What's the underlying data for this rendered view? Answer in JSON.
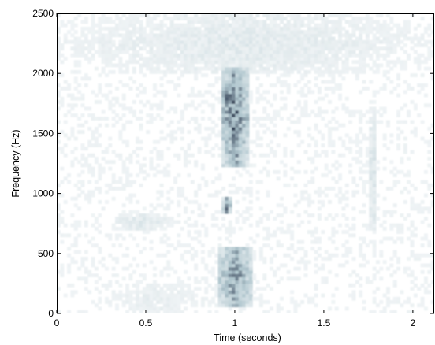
{
  "chart_data": {
    "type": "heatmap",
    "title": "",
    "xlabel": "Time (seconds)",
    "ylabel": "Frequency (Hz)",
    "xlim": [
      0,
      2.12
    ],
    "ylim": [
      0,
      2500
    ],
    "xticks": [
      {
        "value": 0,
        "label": "0"
      },
      {
        "value": 0.5,
        "label": "0.5"
      },
      {
        "value": 1,
        "label": "1"
      },
      {
        "value": 1.5,
        "label": "1.5"
      },
      {
        "value": 2,
        "label": "2"
      }
    ],
    "yticks": [
      {
        "value": 0,
        "label": "0"
      },
      {
        "value": 500,
        "label": "500"
      },
      {
        "value": 1000,
        "label": "1000"
      },
      {
        "value": 1500,
        "label": "1500"
      },
      {
        "value": 2000,
        "label": "2000"
      },
      {
        "value": 2500,
        "label": "2500"
      }
    ],
    "colormap": "bone (inverted: white = low, dark navy = high)",
    "grid": false,
    "energy_regions": [
      {
        "name": "burst-low-band",
        "t0": 0.9,
        "t1": 1.1,
        "f0": 50,
        "f1": 560,
        "intensity": 0.75
      },
      {
        "name": "burst-mid-band",
        "t0": 0.93,
        "t1": 0.98,
        "f0": 840,
        "f1": 960,
        "intensity": 0.8
      },
      {
        "name": "burst-high-band",
        "t0": 0.92,
        "t1": 1.08,
        "f0": 1230,
        "f1": 2060,
        "intensity": 0.85
      },
      {
        "name": "burst-peak",
        "t0": 0.93,
        "t1": 0.99,
        "f0": 1760,
        "f1": 1900,
        "intensity": 1.0
      },
      {
        "name": "trace-upper",
        "t0": 0.0,
        "t1": 2.12,
        "f0": 2000,
        "f1": 2500,
        "intensity": 0.22
      },
      {
        "name": "trace-late-line",
        "t0": 1.76,
        "t1": 1.79,
        "f0": 700,
        "f1": 1720,
        "intensity": 0.35
      },
      {
        "name": "trace-low-drift",
        "t0": 0.2,
        "t1": 0.9,
        "f0": 0,
        "f1": 260,
        "intensity": 0.18
      },
      {
        "name": "trace-diagonal",
        "t0": 0.3,
        "t1": 0.65,
        "f0": 700,
        "f1": 840,
        "intensity": 0.25
      }
    ]
  }
}
